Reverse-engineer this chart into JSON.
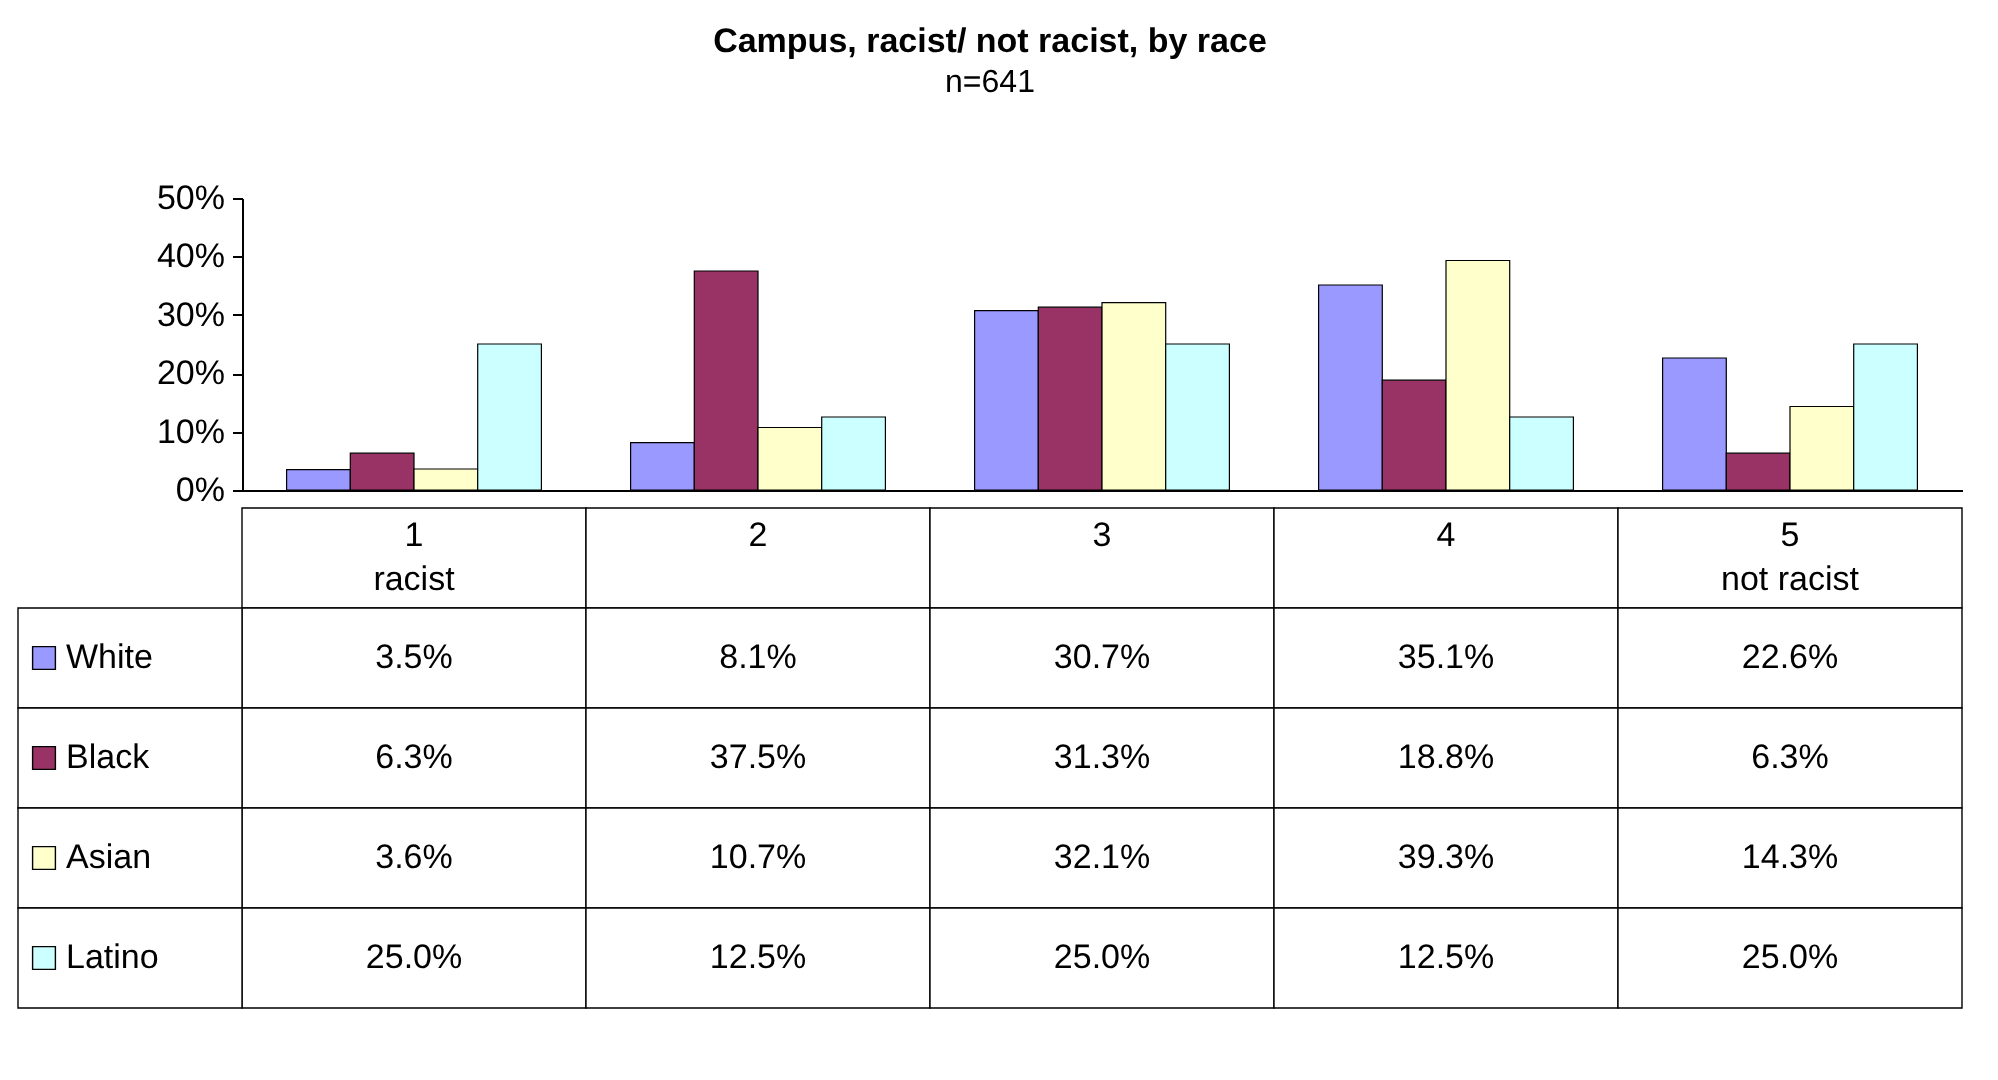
{
  "chart_data": {
    "type": "bar",
    "title": "Campus, racist/ not racist, by race",
    "subtitle": "n=641",
    "legend": "bottom left",
    "categories": [
      "1\nracist",
      "2",
      "3",
      "4",
      "5\nnot racist"
    ],
    "ylim": [
      0,
      50
    ],
    "yticks": [
      {
        "value": 0,
        "label": "0%"
      },
      {
        "value": 10,
        "label": "10%"
      },
      {
        "value": 20,
        "label": "20%"
      },
      {
        "value": 30,
        "label": "30%"
      },
      {
        "value": 40,
        "label": "40%"
      },
      {
        "value": 50,
        "label": "50%"
      }
    ],
    "series": [
      {
        "name": "White",
        "color": "#9999ff",
        "values": [
          3.5,
          8.1,
          30.7,
          35.1,
          22.6
        ],
        "value_labels": [
          "3.5%",
          "8.1%",
          "30.7%",
          "35.1%",
          "22.6%"
        ]
      },
      {
        "name": "Black",
        "color": "#993366",
        "values": [
          6.3,
          37.5,
          31.3,
          18.8,
          6.3
        ],
        "value_labels": [
          "6.3%",
          "37.5%",
          "31.3%",
          "18.8%",
          "6.3%"
        ]
      },
      {
        "name": "Asian",
        "color": "#ffffcc",
        "values": [
          3.6,
          10.7,
          32.1,
          39.3,
          14.3
        ],
        "value_labels": [
          "3.6%",
          "10.7%",
          "32.1%",
          "39.3%",
          "14.3%"
        ]
      },
      {
        "name": "Latino",
        "color": "#ccffff",
        "values": [
          25.0,
          12.5,
          25.0,
          12.5,
          25.0
        ],
        "value_labels": [
          "25.0%",
          "12.5%",
          "25.0%",
          "12.5%",
          "25.0%"
        ]
      }
    ]
  }
}
